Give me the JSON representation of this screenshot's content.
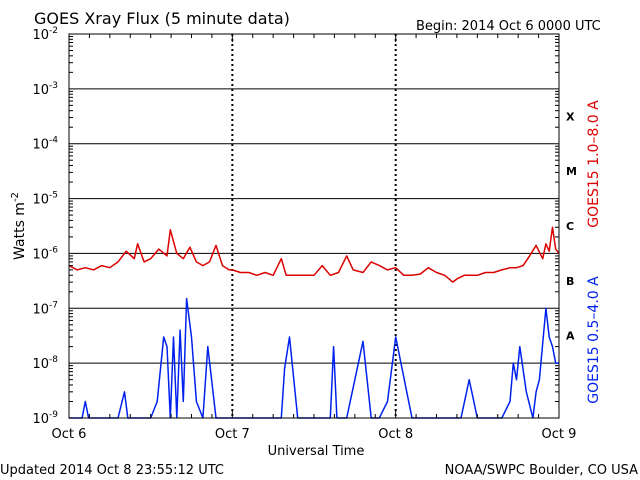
{
  "header": {
    "title": "GOES Xray Flux (5 minute data)",
    "begin": "Begin:  2014 Oct 6 0000 UTC"
  },
  "footer": {
    "updated": "Updated 2014 Oct  8 23:55:12 UTC",
    "credit": "NOAA/SWPC Boulder, CO USA"
  },
  "chart_data": {
    "type": "line",
    "title": "GOES Xray Flux (5 minute data)",
    "xlabel": "Universal Time",
    "ylabel_base": "Watts m",
    "ylabel_exp": "-2",
    "yscale": "log",
    "ylim": [
      1e-09,
      0.01
    ],
    "xlim_days": [
      0,
      3
    ],
    "grid": true,
    "y_ticks": [
      {
        "exp": "-2",
        "v": 0.01
      },
      {
        "exp": "-3",
        "v": 0.001
      },
      {
        "exp": "-4",
        "v": 0.0001
      },
      {
        "exp": "-5",
        "v": 1e-05
      },
      {
        "exp": "-6",
        "v": 1e-06
      },
      {
        "exp": "-7",
        "v": 1e-07
      },
      {
        "exp": "-8",
        "v": 1e-08
      },
      {
        "exp": "-9",
        "v": 1e-09
      }
    ],
    "x_ticks": [
      {
        "label": "Oct 6",
        "v": 0
      },
      {
        "label": "Oct 7",
        "v": 1
      },
      {
        "label": "Oct 8",
        "v": 2
      },
      {
        "label": "Oct 9",
        "v": 3
      }
    ],
    "flare_classes": [
      {
        "label": "X",
        "v": 0.000316
      },
      {
        "label": "M",
        "v": 3.16e-05
      },
      {
        "label": "C",
        "v": 3.16e-06
      },
      {
        "label": "B",
        "v": 3.16e-07
      },
      {
        "label": "A",
        "v": 3.16e-08
      }
    ],
    "series": [
      {
        "name": "GOES15 1.0–8.0 A",
        "color": "#dd0000",
        "x": [
          0,
          0.05,
          0.1,
          0.15,
          0.2,
          0.25,
          0.3,
          0.35,
          0.4,
          0.42,
          0.46,
          0.5,
          0.55,
          0.6,
          0.62,
          0.66,
          0.7,
          0.74,
          0.78,
          0.82,
          0.86,
          0.9,
          0.94,
          0.98,
          1.0,
          1.05,
          1.1,
          1.15,
          1.2,
          1.25,
          1.3,
          1.33,
          1.37,
          1.42,
          1.5,
          1.55,
          1.6,
          1.65,
          1.7,
          1.74,
          1.8,
          1.85,
          1.9,
          1.95,
          2.0,
          2.05,
          2.1,
          2.15,
          2.2,
          2.25,
          2.3,
          2.35,
          2.38,
          2.42,
          2.5,
          2.55,
          2.6,
          2.65,
          2.7,
          2.74,
          2.78,
          2.82,
          2.86,
          2.9,
          2.92,
          2.94,
          2.96,
          2.98,
          3.0
        ],
        "values": [
          6e-07,
          5e-07,
          5.5e-07,
          5e-07,
          6e-07,
          5.5e-07,
          7e-07,
          1.1e-06,
          8e-07,
          1.5e-06,
          7e-07,
          8e-07,
          1.2e-06,
          9e-07,
          2.7e-06,
          1e-06,
          8e-07,
          1.3e-06,
          7e-07,
          6e-07,
          7e-07,
          1.4e-06,
          6e-07,
          5e-07,
          5e-07,
          4.5e-07,
          4.5e-07,
          4e-07,
          4.5e-07,
          4e-07,
          8e-07,
          4e-07,
          4e-07,
          4e-07,
          4e-07,
          6e-07,
          4e-07,
          4.5e-07,
          9e-07,
          5e-07,
          4.5e-07,
          7e-07,
          6e-07,
          5e-07,
          5.5e-07,
          4e-07,
          4e-07,
          4.2e-07,
          5.5e-07,
          4.5e-07,
          4e-07,
          3e-07,
          3.5e-07,
          4e-07,
          4e-07,
          4.5e-07,
          4.5e-07,
          5e-07,
          5.5e-07,
          5.5e-07,
          6e-07,
          9e-07,
          1.4e-06,
          8e-07,
          1.5e-06,
          1.1e-06,
          3e-06,
          1.2e-06,
          1e-06
        ]
      },
      {
        "name": "GOES15 0.5–4.0 A",
        "color": "#0022ee",
        "x": [
          0,
          0.08,
          0.1,
          0.12,
          0.2,
          0.3,
          0.34,
          0.36,
          0.38,
          0.4,
          0.42,
          0.44,
          0.47,
          0.5,
          0.54,
          0.58,
          0.6,
          0.62,
          0.64,
          0.66,
          0.68,
          0.7,
          0.72,
          0.75,
          0.78,
          0.82,
          0.85,
          0.9,
          0.98,
          1.0,
          1.1,
          1.2,
          1.28,
          1.3,
          1.32,
          1.35,
          1.4,
          1.5,
          1.6,
          1.62,
          1.64,
          1.7,
          1.8,
          1.85,
          1.9,
          1.95,
          2.0,
          2.1,
          2.2,
          2.3,
          2.4,
          2.45,
          2.5,
          2.55,
          2.6,
          2.65,
          2.7,
          2.72,
          2.74,
          2.76,
          2.8,
          2.84,
          2.86,
          2.88,
          2.92,
          2.94,
          2.96,
          2.98,
          3.0
        ],
        "values": [
          1e-09,
          1e-09,
          2e-09,
          1e-09,
          1e-09,
          1e-09,
          3e-09,
          1e-09,
          1e-09,
          1e-09,
          1e-09,
          1e-09,
          1e-09,
          1e-09,
          2e-09,
          3e-08,
          2e-08,
          1e-09,
          3e-08,
          1e-09,
          4e-08,
          2e-09,
          1.5e-07,
          3e-08,
          2e-09,
          1e-09,
          2e-08,
          1e-09,
          1e-09,
          1e-09,
          1e-09,
          1e-09,
          1e-09,
          1e-09,
          8e-09,
          3e-08,
          1e-09,
          1e-09,
          1e-09,
          2e-08,
          1e-09,
          1e-09,
          2.5e-08,
          1e-09,
          1e-09,
          2e-09,
          3e-08,
          1e-09,
          1e-09,
          1e-09,
          1e-09,
          5e-09,
          1e-09,
          1e-09,
          1e-09,
          1e-09,
          2e-09,
          1e-08,
          5e-09,
          2e-08,
          3e-09,
          1e-09,
          3e-09,
          5e-09,
          1e-07,
          3e-08,
          2e-08,
          1e-08,
          1e-08
        ]
      }
    ]
  }
}
